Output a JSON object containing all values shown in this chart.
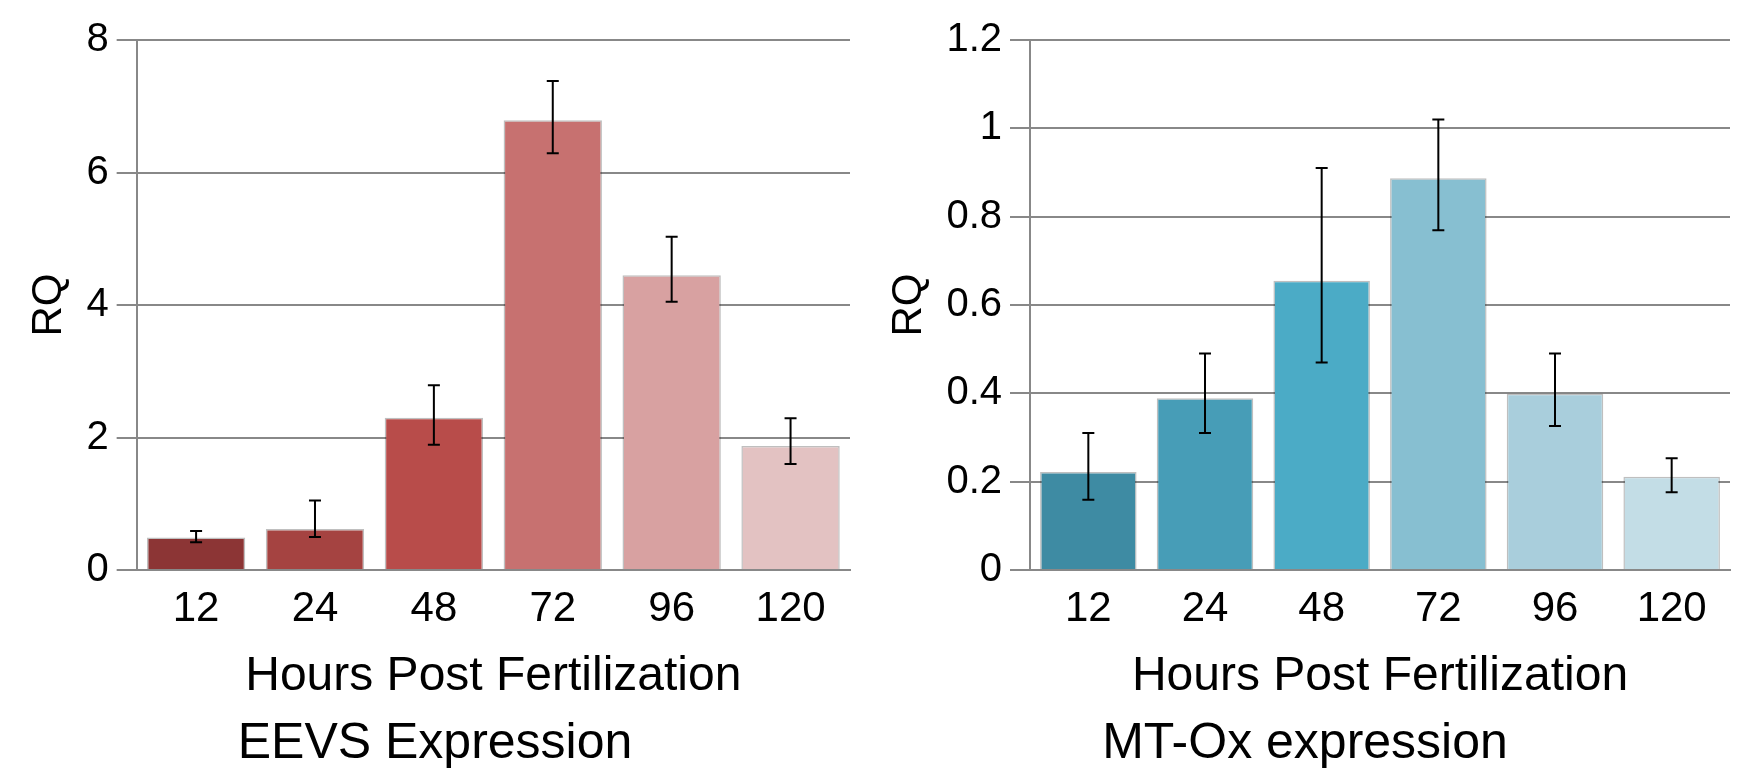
{
  "chart_data": [
    {
      "type": "bar",
      "title": "EEVS Expression",
      "xlabel": "Hours Post Fertilization",
      "ylabel": "RQ",
      "categories": [
        "12",
        "24",
        "48",
        "72",
        "96",
        "120"
      ],
      "values": [
        0.49,
        0.62,
        2.3,
        6.79,
        4.45,
        1.87
      ],
      "errors": [
        [
          0.42,
          0.59
        ],
        [
          0.5,
          1.05
        ],
        [
          1.89,
          2.79
        ],
        [
          6.29,
          7.38
        ],
        [
          4.05,
          5.03
        ],
        [
          1.6,
          2.29
        ]
      ],
      "colors": [
        "#8c3535",
        "#a54341",
        "#b84c4a",
        "#c77170",
        "#d8a1a1",
        "#e3c2c2"
      ],
      "ylim": [
        0,
        8
      ],
      "yticks": [
        0,
        2,
        4,
        6,
        8
      ],
      "grid": "y"
    },
    {
      "type": "bar",
      "title": "MT-Ox expression",
      "xlabel": "Hours Post Fertilization",
      "ylabel": "RQ",
      "categories": [
        "12",
        "24",
        "48",
        "72",
        "96",
        "120"
      ],
      "values": [
        0.222,
        0.389,
        0.655,
        0.887,
        0.399,
        0.211
      ],
      "errors": [
        [
          0.159,
          0.31
        ],
        [
          0.31,
          0.49
        ],
        [
          0.47,
          0.91
        ],
        [
          0.769,
          1.02
        ],
        [
          0.326,
          0.49
        ],
        [
          0.176,
          0.253
        ]
      ],
      "colors": [
        "#3e8ba3",
        "#479db7",
        "#4babc6",
        "#87bfd1",
        "#a9cedc",
        "#c3dde6"
      ],
      "ylim": [
        0,
        1.2
      ],
      "yticks": [
        0,
        0.2,
        0.4,
        0.6,
        0.8,
        1,
        1.2
      ],
      "grid": "y"
    }
  ]
}
